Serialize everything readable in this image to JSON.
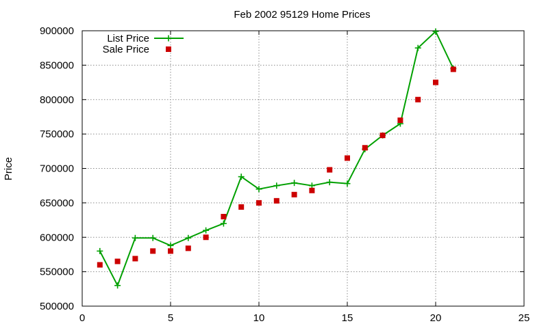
{
  "chart_data": {
    "type": "line",
    "title": "Feb 2002 95129 Home Prices",
    "xlabel": "",
    "ylabel": "Price",
    "xlim": [
      0,
      25
    ],
    "ylim": [
      500000,
      900000
    ],
    "xticks": [
      0,
      5,
      10,
      15,
      20,
      25
    ],
    "yticks": [
      500000,
      550000,
      600000,
      650000,
      700000,
      750000,
      800000,
      850000,
      900000
    ],
    "grid": true,
    "legend_position": "top-left",
    "series": [
      {
        "name": "List Price",
        "style": "line-with-plus-markers",
        "color": "#00a000",
        "x": [
          1,
          2,
          3,
          4,
          5,
          6,
          7,
          8,
          9,
          10,
          11,
          12,
          13,
          14,
          15,
          16,
          17,
          18,
          19,
          20,
          21
        ],
        "y": [
          580000,
          530000,
          599000,
          599000,
          588000,
          599000,
          610000,
          620000,
          688000,
          670000,
          675000,
          679000,
          675000,
          680000,
          678000,
          728000,
          748000,
          765000,
          875000,
          899000,
          845000
        ]
      },
      {
        "name": "Sale Price",
        "style": "square-markers",
        "color": "#cc0000",
        "x": [
          1,
          2,
          3,
          4,
          5,
          6,
          7,
          8,
          9,
          10,
          11,
          12,
          13,
          14,
          15,
          16,
          17,
          18,
          19,
          20,
          21
        ],
        "y": [
          560000,
          565000,
          569000,
          580000,
          580000,
          584000,
          600000,
          630000,
          644000,
          650000,
          653000,
          662000,
          668000,
          698000,
          715000,
          730000,
          748000,
          770000,
          800000,
          825000,
          844000
        ]
      }
    ]
  }
}
